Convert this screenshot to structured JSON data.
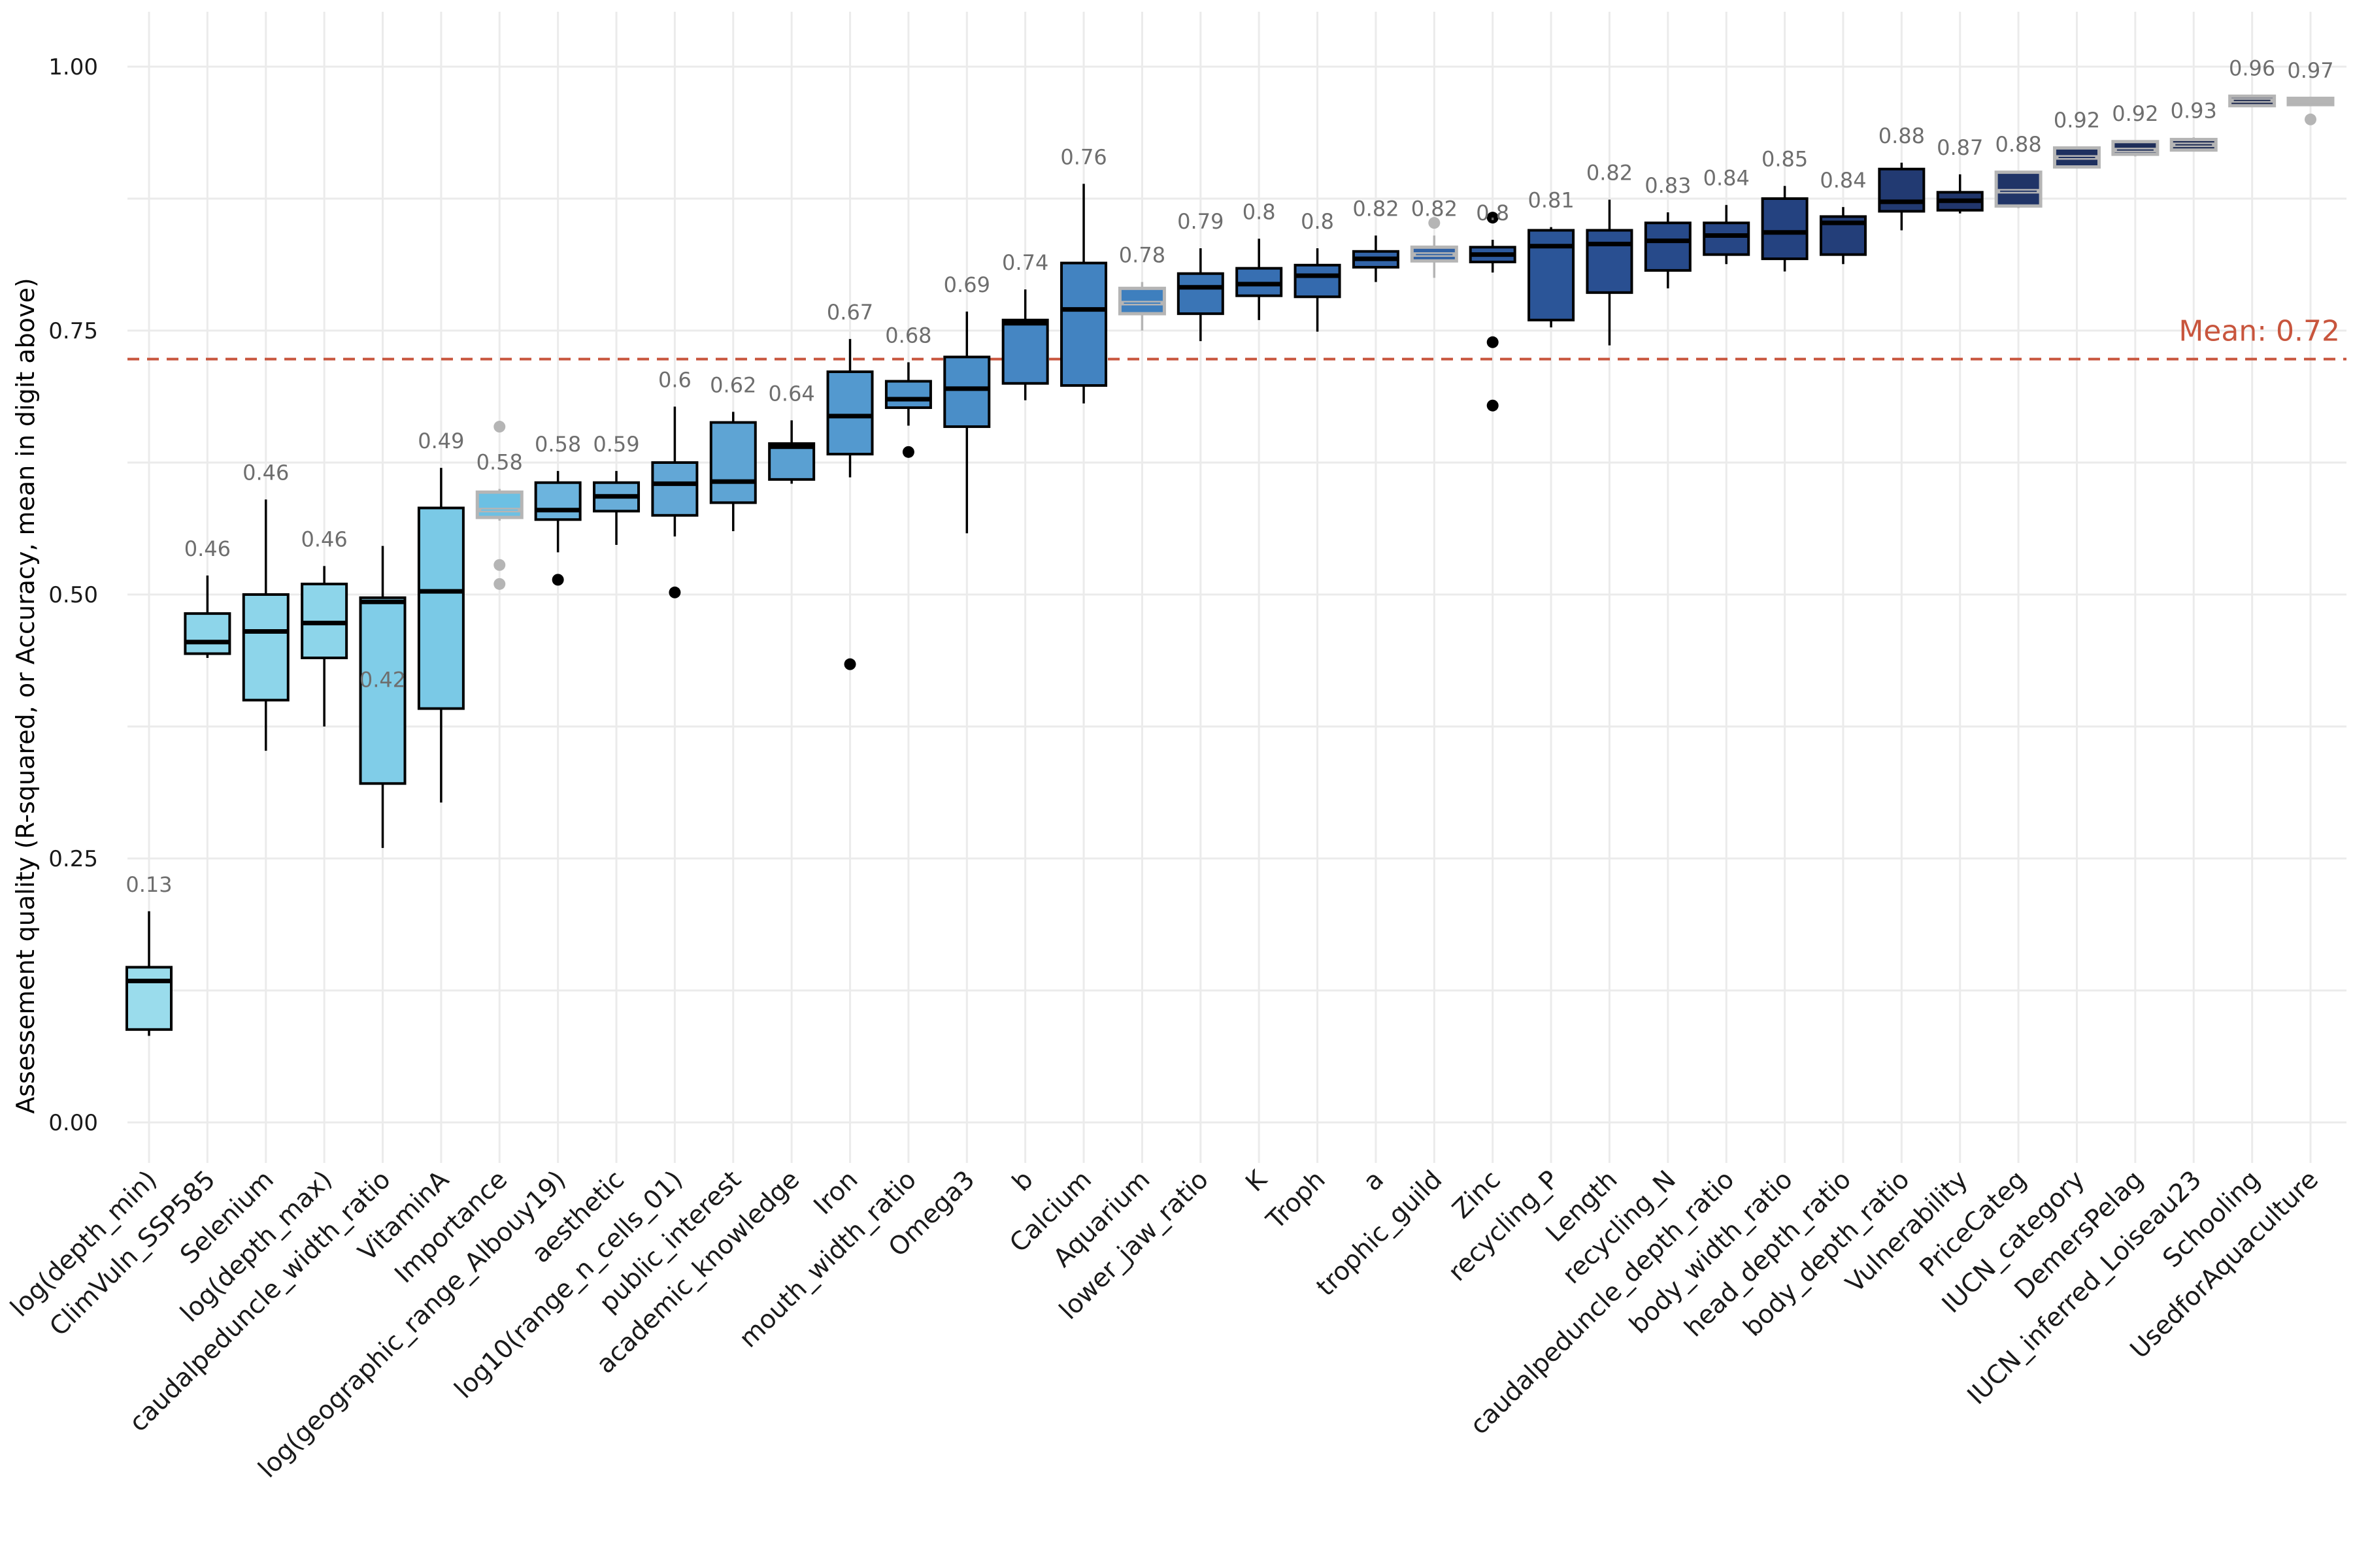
{
  "chart_data": {
    "type": "box",
    "ylabel": "Assessement quality (R-squared, or Accuracy, mean in digit above)",
    "xlabel": "",
    "ylim": [
      -0.06,
      1.06
    ],
    "yticks": [
      0,
      0.25,
      0.5,
      0.75,
      1
    ],
    "ytick_labels": [
      "0.00",
      "0.25",
      "0.50",
      "0.75",
      "1.00"
    ],
    "grid": true,
    "mean_line": {
      "value": 0.723,
      "label": "Mean: 0.72",
      "color": "#c8553d"
    },
    "categories": [
      {
        "name": "log(depth_min)",
        "label": "0.13",
        "min": 0.082,
        "q1": 0.088,
        "median": 0.134,
        "q3": 0.147,
        "max": 0.2,
        "outliers": [],
        "fill": "#9adcec",
        "stroke": "#000000"
      },
      {
        "name": "ClimVuln_SSP585",
        "label": "0.46",
        "min": 0.44,
        "q1": 0.444,
        "median": 0.455,
        "q3": 0.482,
        "max": 0.518,
        "outliers": [],
        "fill": "#8dd5ea",
        "stroke": "#000000"
      },
      {
        "name": "Selenium",
        "label": "0.46",
        "min": 0.352,
        "q1": 0.4,
        "median": 0.465,
        "q3": 0.5,
        "max": 0.59,
        "outliers": [],
        "fill": "#8dd5ea",
        "stroke": "#000000"
      },
      {
        "name": "log(depth_max)",
        "label": "0.46",
        "min": 0.375,
        "q1": 0.44,
        "median": 0.473,
        "q3": 0.51,
        "max": 0.527,
        "outliers": [],
        "fill": "#8dd5ea",
        "stroke": "#000000"
      },
      {
        "name": "caudalpeduncle_width_ratio",
        "label": "0.42",
        "min": 0.26,
        "q1": 0.321,
        "median": 0.493,
        "q3": 0.497,
        "max": 0.546,
        "outliers": [],
        "fill": "#80cde8",
        "stroke": "#000000"
      },
      {
        "name": "VitaminA",
        "label": "0.49",
        "min": 0.303,
        "q1": 0.392,
        "median": 0.503,
        "q3": 0.582,
        "max": 0.62,
        "outliers": [],
        "fill": "#7ac9e6",
        "stroke": "#000000"
      },
      {
        "name": "Importance",
        "label": "0.58",
        "min": 0.57,
        "q1": 0.573,
        "median": 0.58,
        "q3": 0.597,
        "max": 0.6,
        "outliers": [
          0.51,
          0.528,
          0.659
        ],
        "fill": "#6cc0e3",
        "stroke": "#b5b5b5"
      },
      {
        "name": "log(geographic_range_Albouy19)",
        "label": "0.58",
        "min": 0.54,
        "q1": 0.571,
        "median": 0.58,
        "q3": 0.606,
        "max": 0.617,
        "outliers": [
          0.514
        ],
        "fill": "#6cb4de",
        "stroke": "#000000"
      },
      {
        "name": "aesthetic",
        "label": "0.59",
        "min": 0.547,
        "q1": 0.579,
        "median": 0.593,
        "q3": 0.606,
        "max": 0.617,
        "outliers": [],
        "fill": "#68add9",
        "stroke": "#000000"
      },
      {
        "name": "log10(range_n_cells_01)",
        "label": "0.6",
        "min": 0.555,
        "q1": 0.575,
        "median": 0.605,
        "q3": 0.625,
        "max": 0.678,
        "outliers": [
          0.502
        ],
        "fill": "#62a7d6",
        "stroke": "#000000"
      },
      {
        "name": "public_interest",
        "label": "0.62",
        "min": 0.56,
        "q1": 0.587,
        "median": 0.607,
        "q3": 0.663,
        "max": 0.673,
        "outliers": [],
        "fill": "#5ea4d4",
        "stroke": "#000000"
      },
      {
        "name": "academic_knowledge",
        "label": "0.64",
        "min": 0.605,
        "q1": 0.609,
        "median": 0.64,
        "q3": 0.643,
        "max": 0.665,
        "outliers": [],
        "fill": "#5aa0d2",
        "stroke": "#000000"
      },
      {
        "name": "Iron",
        "label": "0.67",
        "min": 0.611,
        "q1": 0.633,
        "median": 0.669,
        "q3": 0.711,
        "max": 0.742,
        "outliers": [
          0.434
        ],
        "fill": "#5399cf",
        "stroke": "#000000"
      },
      {
        "name": "mouth_width_ratio",
        "label": "0.68",
        "min": 0.66,
        "q1": 0.677,
        "median": 0.685,
        "q3": 0.702,
        "max": 0.72,
        "outliers": [
          0.635
        ],
        "fill": "#4f94cc",
        "stroke": "#000000"
      },
      {
        "name": "Omega3",
        "label": "0.69",
        "min": 0.558,
        "q1": 0.659,
        "median": 0.695,
        "q3": 0.725,
        "max": 0.768,
        "outliers": [],
        "fill": "#4a8ec8",
        "stroke": "#000000"
      },
      {
        "name": "b",
        "label": "0.74",
        "min": 0.684,
        "q1": 0.7,
        "median": 0.757,
        "q3": 0.76,
        "max": 0.789,
        "outliers": [],
        "fill": "#4586c3",
        "stroke": "#000000"
      },
      {
        "name": "Calcium",
        "label": "0.76",
        "min": 0.681,
        "q1": 0.698,
        "median": 0.77,
        "q3": 0.814,
        "max": 0.889,
        "outliers": [],
        "fill": "#4283c1",
        "stroke": "#000000"
      },
      {
        "name": "Aquarium",
        "label": "0.78",
        "min": 0.75,
        "q1": 0.766,
        "median": 0.776,
        "q3": 0.79,
        "max": 0.796,
        "outliers": [],
        "fill": "#3e7fbe",
        "stroke": "#b5b5b5"
      },
      {
        "name": "lower_jaw_ratio",
        "label": "0.79",
        "min": 0.74,
        "q1": 0.766,
        "median": 0.791,
        "q3": 0.804,
        "max": 0.828,
        "outliers": [],
        "fill": "#3a75b6",
        "stroke": "#000000"
      },
      {
        "name": "K",
        "label": "0.8",
        "min": 0.76,
        "q1": 0.783,
        "median": 0.794,
        "q3": 0.809,
        "max": 0.837,
        "outliers": [],
        "fill": "#376fb2",
        "stroke": "#000000"
      },
      {
        "name": "Troph",
        "label": "0.8",
        "min": 0.749,
        "q1": 0.782,
        "median": 0.802,
        "q3": 0.812,
        "max": 0.828,
        "outliers": [],
        "fill": "#346aae",
        "stroke": "#000000"
      },
      {
        "name": "a",
        "label": "0.82",
        "min": 0.796,
        "q1": 0.81,
        "median": 0.818,
        "q3": 0.825,
        "max": 0.84,
        "outliers": [],
        "fill": "#3264a8",
        "stroke": "#000000"
      },
      {
        "name": "trophic_guild",
        "label": "0.82",
        "min": 0.8,
        "q1": 0.816,
        "median": 0.822,
        "q3": 0.829,
        "max": 0.84,
        "outliers": [
          0.852
        ],
        "fill": "#2f60a4",
        "stroke": "#b5b5b5"
      },
      {
        "name": "Zinc",
        "label": "0.8",
        "min": 0.805,
        "q1": 0.815,
        "median": 0.822,
        "q3": 0.829,
        "max": 0.836,
        "outliers": [
          0.679,
          0.739,
          0.857
        ],
        "fill": "#2d5a9f",
        "stroke": "#000000"
      },
      {
        "name": "recycling_P",
        "label": "0.81",
        "min": 0.753,
        "q1": 0.76,
        "median": 0.83,
        "q3": 0.845,
        "max": 0.848,
        "outliers": [],
        "fill": "#2b5598",
        "stroke": "#000000"
      },
      {
        "name": "Length",
        "label": "0.82",
        "min": 0.736,
        "q1": 0.786,
        "median": 0.832,
        "q3": 0.845,
        "max": 0.874,
        "outliers": [],
        "fill": "#294f91",
        "stroke": "#000000"
      },
      {
        "name": "recycling_N",
        "label": "0.83",
        "min": 0.79,
        "q1": 0.807,
        "median": 0.835,
        "q3": 0.852,
        "max": 0.862,
        "outliers": [],
        "fill": "#274a8a",
        "stroke": "#000000"
      },
      {
        "name": "caudalpeduncle_depth_ratio",
        "label": "0.84",
        "min": 0.813,
        "q1": 0.822,
        "median": 0.84,
        "q3": 0.852,
        "max": 0.869,
        "outliers": [],
        "fill": "#264685",
        "stroke": "#000000"
      },
      {
        "name": "body_width_ratio",
        "label": "0.85",
        "min": 0.806,
        "q1": 0.818,
        "median": 0.843,
        "q3": 0.875,
        "max": 0.887,
        "outliers": [],
        "fill": "#244280",
        "stroke": "#000000"
      },
      {
        "name": "head_depth_ratio",
        "label": "0.84",
        "min": 0.813,
        "q1": 0.822,
        "median": 0.852,
        "q3": 0.858,
        "max": 0.867,
        "outliers": [],
        "fill": "#233e79",
        "stroke": "#000000"
      },
      {
        "name": "body_depth_ratio",
        "label": "0.88",
        "min": 0.845,
        "q1": 0.863,
        "median": 0.872,
        "q3": 0.903,
        "max": 0.909,
        "outliers": [],
        "fill": "#223a72",
        "stroke": "#000000"
      },
      {
        "name": "Vulnerability",
        "label": "0.87",
        "min": 0.861,
        "q1": 0.864,
        "median": 0.873,
        "q3": 0.881,
        "max": 0.898,
        "outliers": [],
        "fill": "#21366c",
        "stroke": "#000000"
      },
      {
        "name": "PriceCateg",
        "label": "0.88",
        "min": 0.866,
        "q1": 0.868,
        "median": 0.882,
        "q3": 0.9,
        "max": 0.901,
        "outliers": [],
        "fill": "#203467",
        "stroke": "#b5b5b5"
      },
      {
        "name": "IUCN_category",
        "label": "0.92",
        "min": 0.905,
        "q1": 0.905,
        "median": 0.914,
        "q3": 0.923,
        "max": 0.924,
        "outliers": [],
        "fill": "#1e305f",
        "stroke": "#b5b5b5"
      },
      {
        "name": "DemersPelag",
        "label": "0.92",
        "min": 0.915,
        "q1": 0.917,
        "median": 0.921,
        "q3": 0.929,
        "max": 0.93,
        "outliers": [],
        "fill": "#1d2d59",
        "stroke": "#b5b5b5"
      },
      {
        "name": "IUCN_inferred_Loiseau23",
        "label": "0.93",
        "min": 0.92,
        "q1": 0.921,
        "median": 0.926,
        "q3": 0.931,
        "max": 0.933,
        "outliers": [],
        "fill": "#1c2a53",
        "stroke": "#b5b5b5"
      },
      {
        "name": "Schooling",
        "label": "0.96",
        "min": 0.962,
        "q1": 0.963,
        "median": 0.968,
        "q3": 0.972,
        "max": 0.973,
        "outliers": [],
        "fill": "#1b274d",
        "stroke": "#b5b5b5"
      },
      {
        "name": "UsedforAquaculture",
        "label": "0.97",
        "min": 0.963,
        "q1": 0.964,
        "median": 0.967,
        "q3": 0.97,
        "max": 0.971,
        "outliers": [
          0.95
        ],
        "fill": "#b5b5b5",
        "stroke": "#b5b5b5"
      }
    ]
  }
}
